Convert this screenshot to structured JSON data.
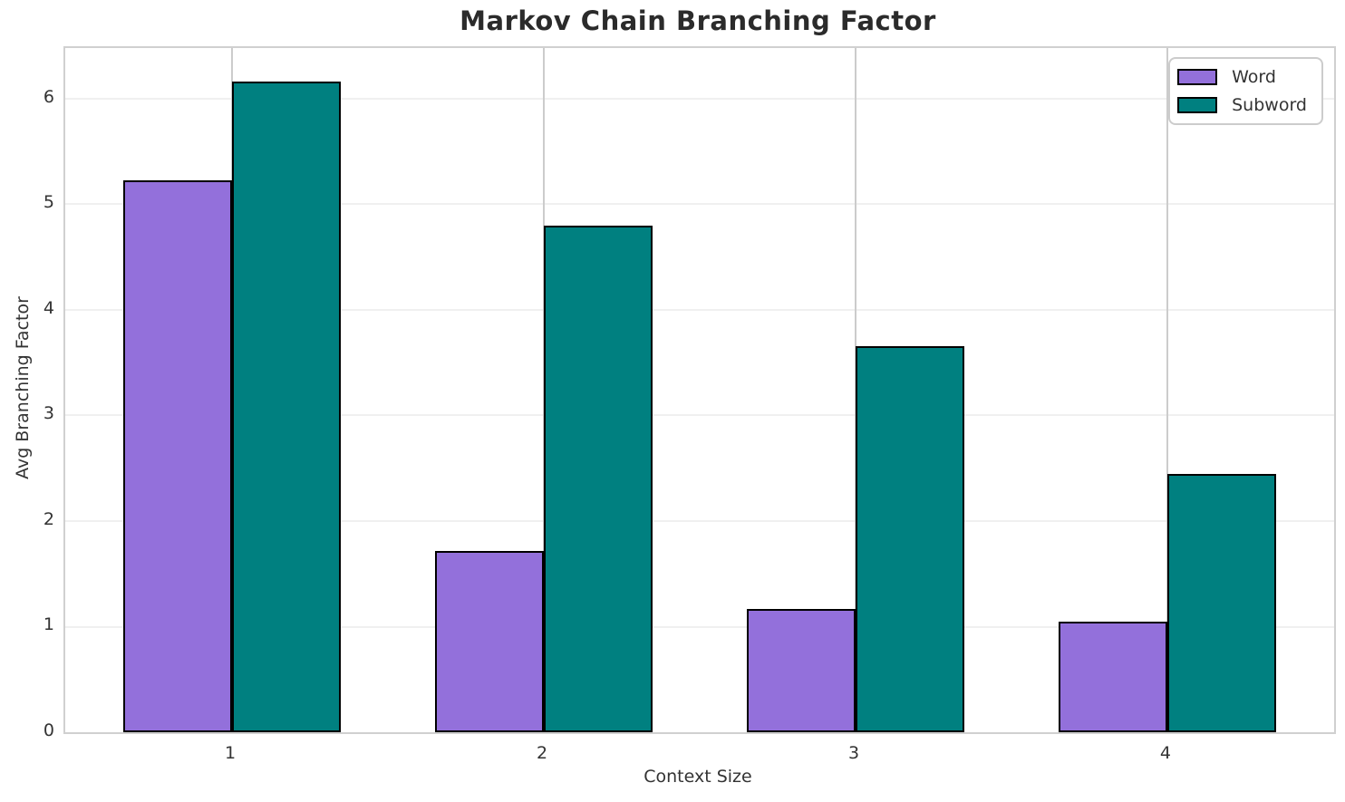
{
  "chart_data": {
    "type": "bar",
    "title": "Markov Chain Branching Factor",
    "xlabel": "Context Size",
    "ylabel": "Avg Branching Factor",
    "categories": [
      "1",
      "2",
      "3",
      "4"
    ],
    "series": [
      {
        "name": "Word",
        "color": "#9370DB",
        "values": [
          5.23,
          1.72,
          1.17,
          1.05
        ]
      },
      {
        "name": "Subword",
        "color": "#008080",
        "values": [
          6.16,
          4.8,
          3.66,
          2.45
        ]
      }
    ],
    "bar_edge_color": "#000000",
    "bar_width": 0.35,
    "xlim": [
      0.465,
      4.535
    ],
    "ylim": [
      0,
      6.48
    ],
    "yticks": [
      0,
      1,
      2,
      3,
      4,
      5,
      6
    ],
    "grid": true,
    "legend_position": "upper right"
  },
  "style": {
    "title_color": "#2b2b2b",
    "axis_text_color": "#333333",
    "spine_color": "#d0d0d0",
    "grid_h_color": "#f0f0f0",
    "grid_v_color": "#cccccc",
    "legend_border_color": "#cccccc",
    "plot_bg": "#ffffff"
  }
}
